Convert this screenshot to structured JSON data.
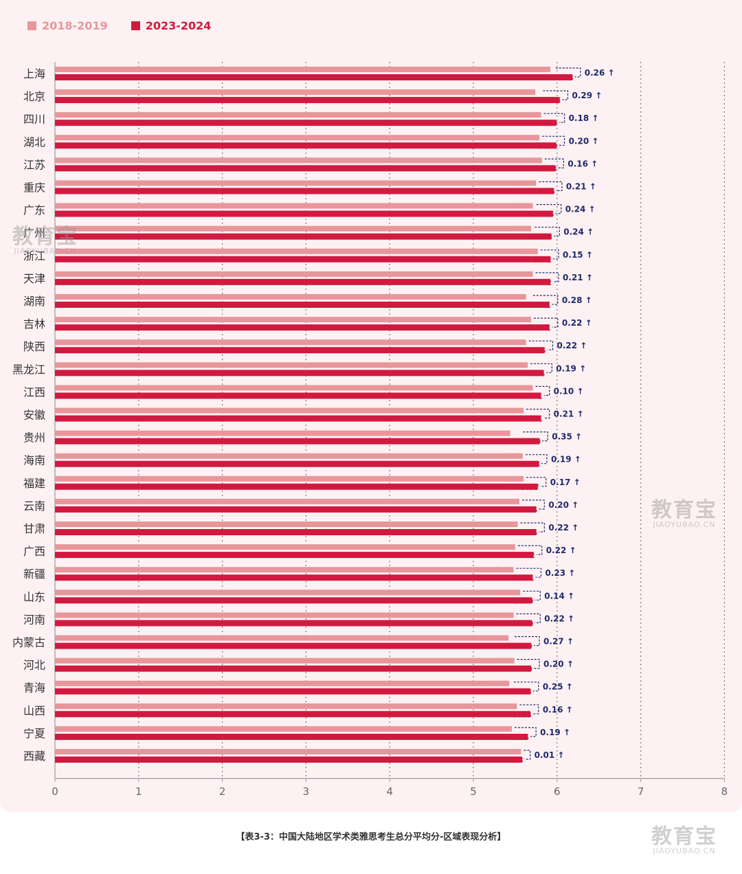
{
  "legend": [
    {
      "label": "2018-2019",
      "color": "#e8969b"
    },
    {
      "label": "2023-2024",
      "color": "#d2193f"
    }
  ],
  "colors": {
    "old": "#e8969b",
    "new": "#d2193f",
    "diff": "#1f2a6b",
    "grid": "#7a7a7a"
  },
  "caption": "【表3-3：中国大陆地区学术类雅思考生总分平均分-区域表现分析】",
  "watermark": {
    "name": "教育宝",
    "url": "JIAOYUBAO.CN"
  },
  "chart_data": {
    "type": "bar",
    "orientation": "horizontal",
    "xlim": [
      0,
      8
    ],
    "xticks": [
      "0",
      "1",
      "2",
      "3",
      "4",
      "5",
      "6",
      "7",
      "8"
    ],
    "grid": true,
    "legend_position": "top-left",
    "categories": [
      "上海",
      "北京",
      "四川",
      "湖北",
      "江苏",
      "重庆",
      "广东",
      "广州",
      "浙江",
      "天津",
      "湖南",
      "吉林",
      "陕西",
      "黑龙江",
      "江西",
      "安徽",
      "贵州",
      "海南",
      "福建",
      "云南",
      "甘肃",
      "广西",
      "新疆",
      "山东",
      "河南",
      "内蒙古",
      "河北",
      "青海",
      "山西",
      "宁夏",
      "西藏"
    ],
    "series": [
      {
        "name": "2018-2019",
        "values": [
          5.92,
          5.74,
          5.81,
          5.79,
          5.82,
          5.75,
          5.71,
          5.69,
          5.77,
          5.71,
          5.63,
          5.69,
          5.63,
          5.65,
          5.71,
          5.6,
          5.44,
          5.59,
          5.6,
          5.55,
          5.53,
          5.5,
          5.48,
          5.56,
          5.48,
          5.42,
          5.49,
          5.43,
          5.52,
          5.46,
          5.57
        ]
      },
      {
        "name": "2023-2024",
        "values": [
          6.18,
          6.03,
          5.99,
          5.99,
          5.98,
          5.96,
          5.95,
          5.93,
          5.92,
          5.92,
          5.91,
          5.91,
          5.85,
          5.84,
          5.81,
          5.81,
          5.79,
          5.78,
          5.77,
          5.75,
          5.75,
          5.72,
          5.71,
          5.7,
          5.7,
          5.69,
          5.69,
          5.68,
          5.68,
          5.65,
          5.58
        ]
      }
    ],
    "differences": [
      "0.26",
      "0.29",
      "0.18",
      "0.20",
      "0.16",
      "0.21",
      "0.24",
      "0.24",
      "0.15",
      "0.21",
      "0.28",
      "0.22",
      "0.22",
      "0.19",
      "0.10",
      "0.21",
      "0.35",
      "0.19",
      "0.17",
      "0.20",
      "0.22",
      "0.22",
      "0.23",
      "0.14",
      "0.22",
      "0.27",
      "0.20",
      "0.25",
      "0.16",
      "0.19",
      "0.01"
    ],
    "difference_marker": "↑"
  }
}
